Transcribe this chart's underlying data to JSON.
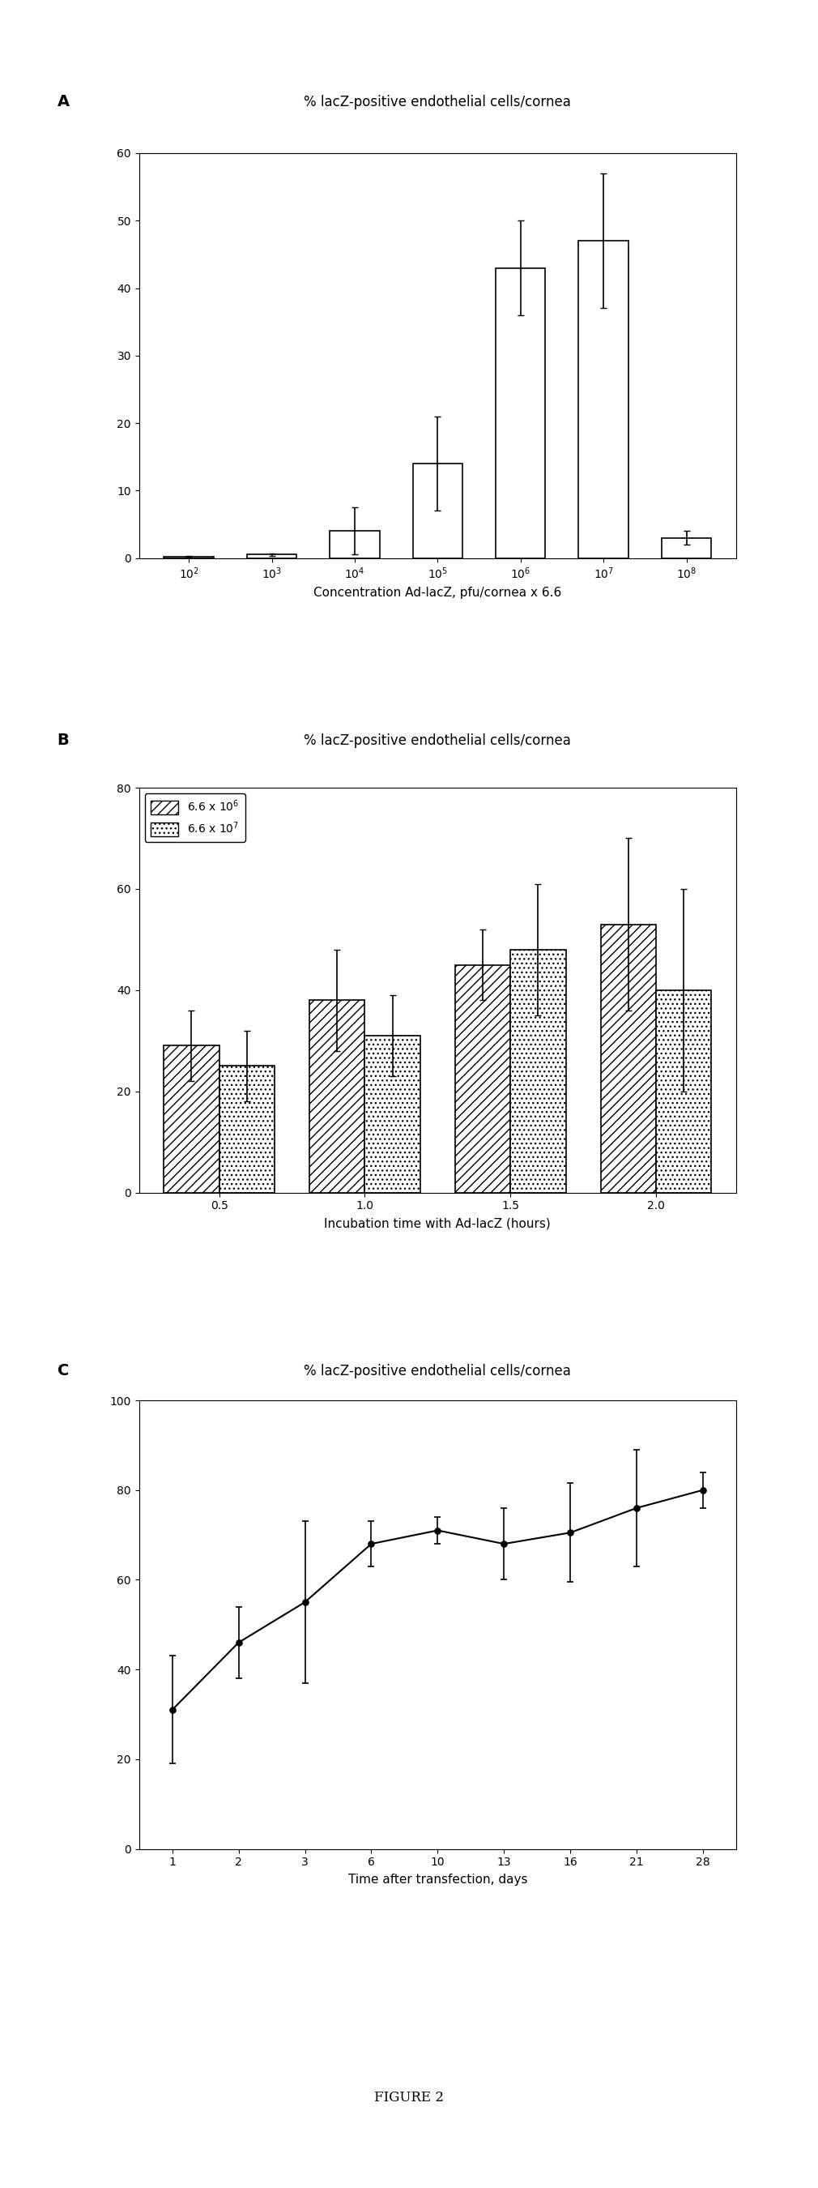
{
  "panel_A": {
    "title": "% lacZ-positive endothelial cells/cornea",
    "xlabel": "Concentration Ad-lacZ, pfu/cornea x 6.6",
    "label_letter": "A",
    "categories": [
      "10$^2$",
      "10$^3$",
      "10$^4$",
      "10$^5$",
      "10$^6$",
      "10$^7$",
      "10$^8$"
    ],
    "values": [
      0.2,
      0.5,
      4.0,
      14.0,
      43.0,
      47.0,
      3.0
    ],
    "errors": [
      0.1,
      0.2,
      3.5,
      7.0,
      7.0,
      10.0,
      1.0
    ],
    "ylim": [
      0,
      60
    ],
    "yticks": [
      0,
      10,
      20,
      30,
      40,
      50,
      60
    ]
  },
  "panel_B": {
    "title": "% lacZ-positive endothelial cells/cornea",
    "xlabel": "Incubation time with Ad-lacZ (hours)",
    "label_letter": "B",
    "categories": [
      "0.5",
      "1.0",
      "1.5",
      "2.0"
    ],
    "values_1": [
      29.0,
      38.0,
      45.0,
      53.0
    ],
    "errors_1": [
      7.0,
      10.0,
      7.0,
      17.0
    ],
    "values_2": [
      25.0,
      31.0,
      48.0,
      40.0
    ],
    "errors_2": [
      7.0,
      8.0,
      13.0,
      20.0
    ],
    "ylim": [
      0,
      80
    ],
    "yticks": [
      0,
      20,
      40,
      60,
      80
    ],
    "legend_1": "6.6 x 10$^6$",
    "legend_2": "6.6 x 10$^7$"
  },
  "panel_C": {
    "title": "% lacZ-positive endothelial cells/cornea",
    "xlabel": "Time after transfection, days",
    "label_letter": "C",
    "x_values": [
      1,
      2,
      3,
      6,
      10,
      13,
      16,
      21,
      28
    ],
    "y_values": [
      31.0,
      46.0,
      55.0,
      68.0,
      71.0,
      68.0,
      70.5,
      76.0,
      80.0
    ],
    "errors": [
      12.0,
      8.0,
      18.0,
      5.0,
      3.0,
      8.0,
      11.0,
      13.0,
      4.0
    ],
    "ylim": [
      0,
      100
    ],
    "yticks": [
      0,
      20,
      40,
      60,
      80,
      100
    ]
  },
  "figure_label": "FIGURE 2",
  "bg_color": "#ffffff",
  "bar_color": "#ffffff",
  "bar_edge": "#000000",
  "font_size_title": 12,
  "font_size_label": 11,
  "font_size_tick": 10,
  "font_size_letter": 14,
  "font_size_figure": 12
}
